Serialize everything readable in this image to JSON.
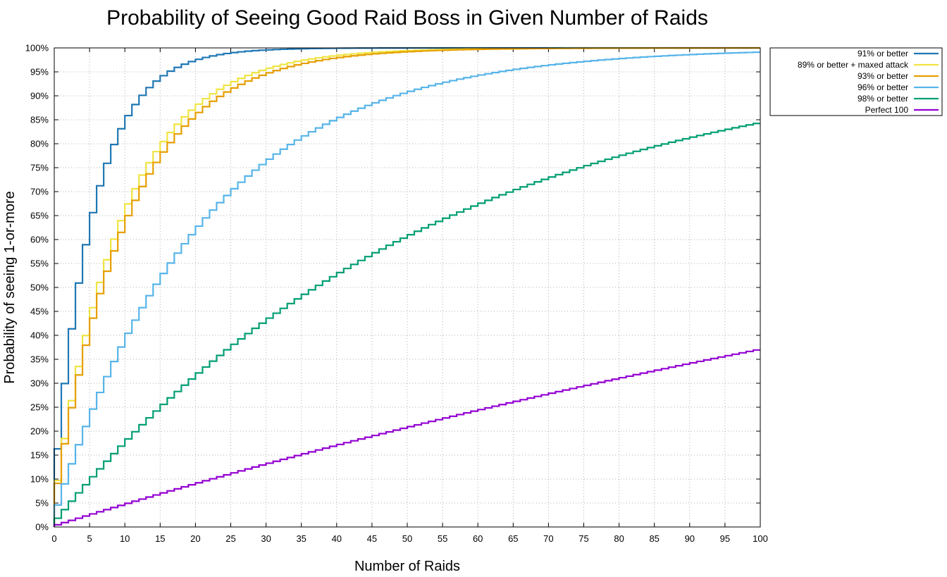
{
  "chart_data": {
    "type": "line",
    "title": "Probability of Seeing Good Raid Boss in Given Number of Raids",
    "xlabel": "Number of Raids",
    "ylabel": "Probability of seeing 1-or-more",
    "xlim": [
      0,
      100
    ],
    "ylim": [
      0,
      100
    ],
    "x_ticks": [
      "0",
      "5",
      "10",
      "15",
      "20",
      "25",
      "30",
      "35",
      "40",
      "45",
      "50",
      "55",
      "60",
      "65",
      "70",
      "75",
      "80",
      "85",
      "90",
      "95",
      "100"
    ],
    "y_ticks": [
      "0%",
      "5%",
      "10%",
      "15%",
      "20%",
      "25%",
      "30%",
      "35%",
      "40%",
      "45%",
      "50%",
      "55%",
      "60%",
      "65%",
      "70%",
      "75%",
      "80%",
      "85%",
      "90%",
      "95%",
      "100%"
    ],
    "grid": true,
    "legend_position": "outside-top-right",
    "step_plot": true,
    "value_unit": "percent",
    "series": [
      {
        "name": "91% or better",
        "color": "#1f77b4",
        "per_raid_probability_percent": 16.3
      },
      {
        "name": "89% or better + maxed attack",
        "color": "#f0e442",
        "per_raid_probability_percent": 9.7
      },
      {
        "name": "93% or better",
        "color": "#e69f00",
        "per_raid_probability_percent": 9.1
      },
      {
        "name": "96% or better",
        "color": "#56b4e9",
        "per_raid_probability_percent": 4.6
      },
      {
        "name": "98% or better",
        "color": "#009e73",
        "per_raid_probability_percent": 1.83
      },
      {
        "name": "Perfect 100",
        "color": "#9400d3",
        "per_raid_probability_percent": 0.46
      }
    ]
  }
}
